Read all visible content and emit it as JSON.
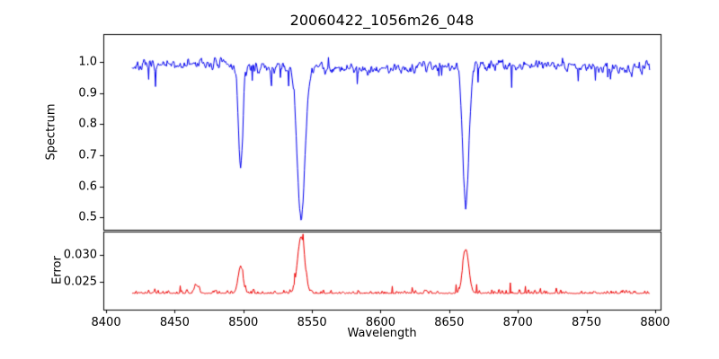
{
  "chart_data": {
    "type": "line",
    "title": "20060422_1056m26_048",
    "xlabel": "Wavelength",
    "background": "#ffffff",
    "grid": false,
    "legend": false,
    "xlim": [
      8398,
      8804
    ],
    "x_data_range": [
      8419,
      8796
    ],
    "x_ticks": [
      {
        "v": 8400,
        "label": "8400"
      },
      {
        "v": 8450,
        "label": "8450"
      },
      {
        "v": 8500,
        "label": "8500"
      },
      {
        "v": 8550,
        "label": "8550"
      },
      {
        "v": 8600,
        "label": "8600"
      },
      {
        "v": 8650,
        "label": "8650"
      },
      {
        "v": 8700,
        "label": "8700"
      },
      {
        "v": 8750,
        "label": "8750"
      },
      {
        "v": 8800,
        "label": "8800"
      }
    ],
    "panels": [
      {
        "name": "spectrum",
        "ylabel": "Spectrum",
        "ylim": [
          0.46,
          1.09
        ],
        "y_ticks": [
          {
            "v": 0.5,
            "label": "0.5"
          },
          {
            "v": 0.6,
            "label": "0.6"
          },
          {
            "v": 0.7,
            "label": "0.7"
          },
          {
            "v": 0.8,
            "label": "0.8"
          },
          {
            "v": 0.9,
            "label": "0.9"
          },
          {
            "v": 1.0,
            "label": "1.0"
          }
        ],
        "line_color": "#0000ee",
        "baseline": 0.985,
        "noise_amplitude": 0.013,
        "absorption_lines": [
          {
            "center": 8498.0,
            "min_value": 0.655,
            "width": 1.6
          },
          {
            "center": 8542.1,
            "min_value": 0.49,
            "width": 2.8
          },
          {
            "center": 8662.1,
            "min_value": 0.53,
            "width": 2.2
          }
        ]
      },
      {
        "name": "error",
        "ylabel": "Error",
        "ylim": [
          0.0198,
          0.0344
        ],
        "y_ticks": [
          {
            "v": 0.025,
            "label": "0.025"
          },
          {
            "v": 0.03,
            "label": "0.030"
          }
        ],
        "line_color": "#ee0000",
        "baseline": 0.0228,
        "noise_amplitude": 0.00045,
        "peaks": [
          {
            "center": 8466.0,
            "height": 0.0015,
            "width": 1.5
          },
          {
            "center": 8498.0,
            "height": 0.005,
            "width": 1.8
          },
          {
            "center": 8542.1,
            "height": 0.0106,
            "width": 2.6
          },
          {
            "center": 8662.1,
            "height": 0.0082,
            "width": 2.2
          }
        ]
      }
    ]
  }
}
